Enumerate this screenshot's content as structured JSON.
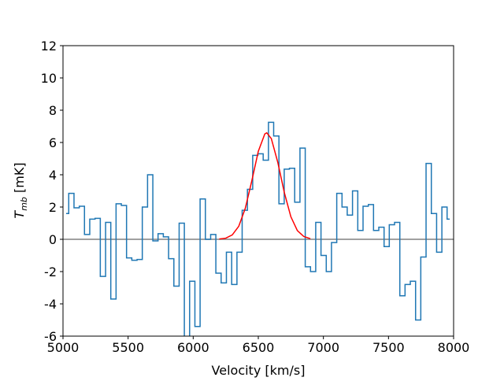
{
  "chart_data": {
    "type": "step",
    "xlabel": "Velocity [km/s]",
    "ylabel": [
      "T",
      "mb",
      "[mK]"
    ],
    "xlim": [
      5000,
      8000
    ],
    "xticks": [
      5000,
      5500,
      6000,
      6500,
      7000,
      7500,
      8000
    ],
    "ylim": [
      -6,
      12
    ],
    "yticks": [
      -6,
      -4,
      -2,
      0,
      2,
      4,
      6,
      8,
      10,
      12
    ],
    "hline": {
      "value": 0,
      "color": "#808080"
    },
    "series": [
      {
        "type": "step",
        "color": "#1f77b4",
        "x": [
          5024,
          5064,
          5105,
          5145,
          5185,
          5226,
          5266,
          5307,
          5347,
          5387,
          5428,
          5468,
          5508,
          5549,
          5589,
          5629,
          5670,
          5710,
          5750,
          5791,
          5831,
          5872,
          5912,
          5952,
          5993,
          6033,
          6073,
          6114,
          6154,
          6194,
          6235,
          6275,
          6316,
          6356,
          6396,
          6437,
          6477,
          6517,
          6558,
          6598,
          6638,
          6679,
          6719,
          6759,
          6800,
          6840,
          6881,
          6921,
          6961,
          7002,
          7042,
          7082,
          7123,
          7163,
          7203,
          7244,
          7284,
          7325,
          7365,
          7405,
          7446,
          7486,
          7526,
          7567,
          7607,
          7647,
          7688,
          7728,
          7768,
          7809,
          7849,
          7890,
          7930,
          7970
        ],
        "values": [
          1.6,
          2.85,
          1.95,
          2.05,
          0.3,
          1.25,
          1.3,
          -2.3,
          1.05,
          -3.7,
          2.2,
          2.1,
          -1.15,
          -1.3,
          -1.25,
          2.0,
          4.0,
          -0.1,
          0.35,
          0.15,
          -1.2,
          -2.9,
          1.0,
          -6.5,
          -2.6,
          -5.4,
          2.5,
          0.0,
          0.3,
          -2.1,
          -2.7,
          -0.8,
          -2.8,
          -0.8,
          1.8,
          3.1,
          5.2,
          5.3,
          4.9,
          7.25,
          6.4,
          2.2,
          4.35,
          4.4,
          2.3,
          5.65,
          -1.7,
          -2.0,
          1.05,
          -1.0,
          -2.0,
          -0.2,
          2.85,
          2.0,
          1.5,
          3.0,
          0.55,
          2.05,
          2.15,
          0.55,
          0.75,
          -0.45,
          0.9,
          1.05,
          -3.5,
          -2.8,
          -2.6,
          -5.0,
          -1.1,
          4.7,
          1.6,
          -0.8,
          2.0,
          1.25
        ]
      },
      {
        "type": "line",
        "color": "#ff0000",
        "x": [
          6200,
          6250,
          6300,
          6350,
          6400,
          6450,
          6500,
          6550,
          6565,
          6600,
          6650,
          6700,
          6750,
          6800,
          6850,
          6900
        ],
        "values": [
          0.02,
          0.07,
          0.27,
          0.81,
          1.92,
          3.62,
          5.45,
          6.53,
          6.6,
          6.24,
          4.76,
          2.89,
          1.4,
          0.54,
          0.17,
          0.04
        ]
      }
    ]
  }
}
